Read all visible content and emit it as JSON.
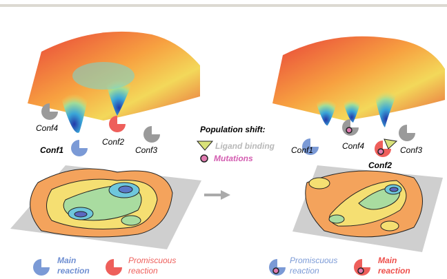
{
  "left_panel": {
    "conformations": [
      {
        "label": "Conf4"
      },
      {
        "label": "Conf1"
      },
      {
        "label": "Conf2"
      },
      {
        "label": "Conf3"
      }
    ],
    "legend": [
      {
        "label_lines": [
          "Main",
          "reaction"
        ]
      },
      {
        "label_lines": [
          "Promiscuous",
          "reaction"
        ]
      }
    ]
  },
  "center": {
    "title": "Population shift:",
    "items": [
      {
        "label": "Ligand binding"
      },
      {
        "label": "Mutations"
      }
    ]
  },
  "right_panel": {
    "conformations": [
      {
        "label": "Conf1"
      },
      {
        "label": "Conf4"
      },
      {
        "label": "Conf2"
      },
      {
        "label": "Conf3"
      }
    ],
    "legend": [
      {
        "label_lines": [
          "Promiscuous",
          "reaction"
        ]
      },
      {
        "label_lines": [
          "Main",
          "reaction"
        ]
      }
    ]
  }
}
